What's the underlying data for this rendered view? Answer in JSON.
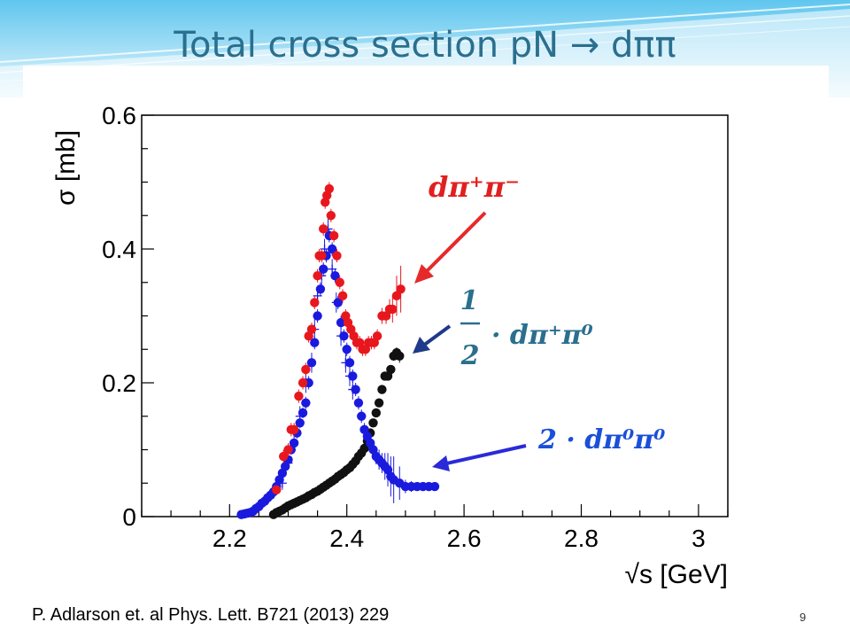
{
  "slide": {
    "title": "Total cross section pN → dππ",
    "citation": "P. Adlarson et. al Phys. Lett. B721 (2013) 229",
    "page_number": "9"
  },
  "annotations": {
    "dpipm": "dπ⁺π⁻",
    "half_num": "1",
    "half_den": "2",
    "half_expr": "· dπ⁺π⁰",
    "two_expr": "2 · dπ⁰π⁰"
  },
  "colors": {
    "title": "#2a6f8e",
    "red_series": "#e8171e",
    "black_series": "#111111",
    "blue_series": "#1a1adf",
    "red_arrow": "#e62a2a",
    "navy_arrow": "#1f3a8a",
    "blue_arrow": "#2a2ad8",
    "dpipm_text": "#e02020",
    "half_text": "#2a6f8e",
    "two_text": "#1a4fd8"
  },
  "chart_data": {
    "type": "scatter",
    "title": "",
    "xlabel": "√s [GeV]",
    "ylabel": "σ [mb]",
    "xlim": [
      2.05,
      3.05
    ],
    "ylim": [
      0,
      0.6
    ],
    "x_ticks": [
      "2.2",
      "2.4",
      "2.6",
      "2.8",
      "3"
    ],
    "x_tick_values": [
      2.2,
      2.4,
      2.6,
      2.8,
      3.0
    ],
    "y_ticks": [
      "0",
      "0.2",
      "0.4",
      "0.6"
    ],
    "y_tick_values": [
      0,
      0.2,
      0.4,
      0.6
    ],
    "grid": false,
    "series": [
      {
        "name": "dπ⁺π⁻",
        "color": "#e8171e",
        "x": [
          2.28,
          2.292,
          2.3,
          2.305,
          2.31,
          2.318,
          2.325,
          2.33,
          2.335,
          2.34,
          2.345,
          2.35,
          2.353,
          2.357,
          2.36,
          2.363,
          2.366,
          2.37,
          2.373,
          2.378,
          2.383,
          2.388,
          2.393,
          2.398,
          2.402,
          2.407,
          2.412,
          2.417,
          2.422,
          2.427,
          2.432,
          2.437,
          2.442,
          2.447,
          2.452,
          2.46,
          2.467,
          2.473,
          2.478,
          2.485,
          2.492
        ],
        "y": [
          0.04,
          0.09,
          0.1,
          0.13,
          0.13,
          0.18,
          0.2,
          0.22,
          0.27,
          0.28,
          0.32,
          0.36,
          0.39,
          0.39,
          0.43,
          0.47,
          0.48,
          0.49,
          0.45,
          0.42,
          0.39,
          0.35,
          0.33,
          0.3,
          0.29,
          0.28,
          0.27,
          0.26,
          0.26,
          0.25,
          0.25,
          0.26,
          0.26,
          0.26,
          0.27,
          0.3,
          0.3,
          0.31,
          0.31,
          0.33,
          0.34
        ],
        "err": [
          0.005,
          0.01,
          0.01,
          0.01,
          0.01,
          0.01,
          0.01,
          0.01,
          0.01,
          0.01,
          0.01,
          0.01,
          0.01,
          0.01,
          0.01,
          0.01,
          0.01,
          0.01,
          0.01,
          0.01,
          0.01,
          0.01,
          0.01,
          0.01,
          0.01,
          0.01,
          0.01,
          0.01,
          0.01,
          0.01,
          0.01,
          0.01,
          0.01,
          0.01,
          0.01,
          0.012,
          0.012,
          0.015,
          0.02,
          0.03,
          0.035
        ]
      },
      {
        "name": "1/2 · dπ⁺π⁰",
        "color": "#111111",
        "x": [
          2.275,
          2.28,
          2.285,
          2.29,
          2.295,
          2.3,
          2.305,
          2.31,
          2.315,
          2.32,
          2.325,
          2.33,
          2.335,
          2.34,
          2.345,
          2.35,
          2.355,
          2.36,
          2.365,
          2.37,
          2.375,
          2.38,
          2.385,
          2.39,
          2.395,
          2.4,
          2.405,
          2.41,
          2.415,
          2.42,
          2.425,
          2.43,
          2.435,
          2.44,
          2.445,
          2.45,
          2.455,
          2.46,
          2.465,
          2.47,
          2.475,
          2.48,
          2.485,
          2.49
        ],
        "y": [
          0.003,
          0.006,
          0.008,
          0.01,
          0.013,
          0.016,
          0.018,
          0.02,
          0.022,
          0.024,
          0.026,
          0.028,
          0.031,
          0.033,
          0.036,
          0.038,
          0.041,
          0.044,
          0.047,
          0.05,
          0.053,
          0.056,
          0.06,
          0.063,
          0.066,
          0.07,
          0.073,
          0.078,
          0.083,
          0.09,
          0.095,
          0.102,
          0.113,
          0.125,
          0.14,
          0.155,
          0.17,
          0.19,
          0.21,
          0.21,
          0.22,
          0.24,
          0.245,
          0.24
        ],
        "err": [
          0.002,
          0.002,
          0.002,
          0.002,
          0.002,
          0.002,
          0.002,
          0.002,
          0.002,
          0.002,
          0.002,
          0.002,
          0.002,
          0.002,
          0.002,
          0.002,
          0.002,
          0.002,
          0.002,
          0.002,
          0.002,
          0.002,
          0.002,
          0.002,
          0.002,
          0.002,
          0.002,
          0.003,
          0.003,
          0.003,
          0.003,
          0.003,
          0.003,
          0.004,
          0.004,
          0.004,
          0.005,
          0.005,
          0.006,
          0.006,
          0.006,
          0.007,
          0.008,
          0.01
        ]
      },
      {
        "name": "2 · dπ⁰π⁰",
        "color": "#1a1adf",
        "x": [
          2.22,
          2.225,
          2.23,
          2.235,
          2.24,
          2.245,
          2.25,
          2.255,
          2.26,
          2.265,
          2.27,
          2.275,
          2.28,
          2.285,
          2.29,
          2.295,
          2.3,
          2.305,
          2.31,
          2.315,
          2.32,
          2.325,
          2.33,
          2.335,
          2.34,
          2.345,
          2.35,
          2.355,
          2.36,
          2.365,
          2.37,
          2.375,
          2.38,
          2.385,
          2.39,
          2.395,
          2.4,
          2.405,
          2.41,
          2.415,
          2.42,
          2.425,
          2.43,
          2.435,
          2.44,
          2.445,
          2.45,
          2.455,
          2.46,
          2.465,
          2.47,
          2.475,
          2.48,
          2.49,
          2.5,
          2.51,
          2.52,
          2.53,
          2.54,
          2.55
        ],
        "y": [
          0.003,
          0.004,
          0.005,
          0.006,
          0.008,
          0.012,
          0.015,
          0.02,
          0.023,
          0.028,
          0.032,
          0.037,
          0.045,
          0.055,
          0.065,
          0.075,
          0.085,
          0.1,
          0.11,
          0.125,
          0.14,
          0.155,
          0.17,
          0.2,
          0.23,
          0.26,
          0.3,
          0.34,
          0.37,
          0.39,
          0.42,
          0.4,
          0.36,
          0.32,
          0.29,
          0.27,
          0.25,
          0.23,
          0.21,
          0.19,
          0.17,
          0.15,
          0.13,
          0.12,
          0.11,
          0.1,
          0.09,
          0.085,
          0.08,
          0.075,
          0.07,
          0.06,
          0.055,
          0.05,
          0.045,
          0.045,
          0.045,
          0.045,
          0.045,
          0.045
        ],
        "err": [
          0.002,
          0.002,
          0.002,
          0.002,
          0.002,
          0.003,
          0.003,
          0.003,
          0.003,
          0.004,
          0.004,
          0.004,
          0.005,
          0.005,
          0.006,
          0.006,
          0.006,
          0.007,
          0.007,
          0.008,
          0.008,
          0.008,
          0.009,
          0.01,
          0.01,
          0.01,
          0.01,
          0.01,
          0.01,
          0.01,
          0.01,
          0.01,
          0.01,
          0.01,
          0.01,
          0.01,
          0.01,
          0.01,
          0.01,
          0.01,
          0.01,
          0.01,
          0.01,
          0.01,
          0.01,
          0.012,
          0.012,
          0.015,
          0.015,
          0.02,
          0.025,
          0.03,
          0.035,
          0.025,
          0.01,
          0.008,
          0.006,
          0.005,
          0.005,
          0.005
        ]
      },
      {
        "name": "",
        "marker": "cross",
        "color": "#1a1adf",
        "x": [
          2.29,
          2.3,
          2.31,
          2.32,
          2.33,
          2.34,
          2.345,
          2.35,
          2.357,
          2.362,
          2.368,
          2.375,
          2.382,
          2.39,
          2.398,
          2.405,
          2.41
        ],
        "y": [
          0.05,
          0.08,
          0.11,
          0.15,
          0.2,
          0.23,
          0.28,
          0.33,
          0.36,
          0.4,
          0.43,
          0.37,
          0.32,
          0.27,
          0.23,
          0.21,
          0.19
        ],
        "err": [
          0.01,
          0.01,
          0.015,
          0.015,
          0.015,
          0.015,
          0.015,
          0.015,
          0.015,
          0.015,
          0.015,
          0.015,
          0.015,
          0.015,
          0.015,
          0.015,
          0.015
        ]
      }
    ]
  }
}
